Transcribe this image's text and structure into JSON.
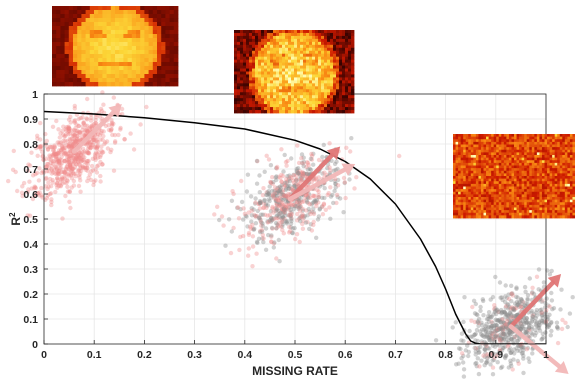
{
  "chart_data": {
    "type": "scatter",
    "title": "",
    "xlabel": "MISSING RATE",
    "ylabel": "R",
    "ylabel_superscript": "2",
    "xlim": [
      0,
      1
    ],
    "ylim": [
      0,
      1
    ],
    "x_ticks": [
      "0",
      "0.1",
      "0.2",
      "0.3",
      "0.4",
      "0.5",
      "0.6",
      "0.7",
      "0.8",
      "0.9",
      "1"
    ],
    "y_ticks": [
      "0",
      "0.1",
      "0.2",
      "0.3",
      "0.4",
      "0.5",
      "0.6",
      "0.7",
      "0.8",
      "0.9",
      "1"
    ],
    "grid": true,
    "curve": {
      "color": "#000000",
      "x": [
        0,
        0.1,
        0.2,
        0.3,
        0.4,
        0.5,
        0.55,
        0.6,
        0.65,
        0.7,
        0.75,
        0.78,
        0.8,
        0.82,
        0.84,
        0.85,
        0.86,
        0.87,
        0.9,
        1.0
      ],
      "y": [
        0.93,
        0.92,
        0.905,
        0.885,
        0.86,
        0.815,
        0.78,
        0.73,
        0.66,
        0.56,
        0.42,
        0.31,
        0.22,
        0.12,
        0.04,
        0.012,
        0.003,
        0.0,
        0.0,
        0.0
      ]
    },
    "clusters": [
      {
        "cx": 0.06,
        "cy": 0.77,
        "sx": 0.045,
        "sy": 0.085,
        "rho": 0.55,
        "n": 650,
        "pink_fraction": 1.0
      },
      {
        "cx": 0.49,
        "cy": 0.58,
        "sx": 0.05,
        "sy": 0.09,
        "rho": 0.55,
        "n": 700,
        "pink_fraction": 0.5
      },
      {
        "cx": 0.93,
        "cy": 0.07,
        "sx": 0.045,
        "sy": 0.075,
        "rho": 0.4,
        "n": 650,
        "pink_fraction": 0.12
      }
    ],
    "arrows": [
      {
        "x1": 0.06,
        "y1": 0.77,
        "x2": 0.155,
        "y2": 0.96,
        "color": "#f2b7b7"
      },
      {
        "x1": 0.49,
        "y1": 0.58,
        "x2": 0.59,
        "y2": 0.79,
        "color": "#e07676"
      },
      {
        "x1": 0.49,
        "y1": 0.58,
        "x2": 0.62,
        "y2": 0.72,
        "color": "#f2b7b7"
      },
      {
        "x1": 0.93,
        "y1": 0.07,
        "x2": 1.03,
        "y2": 0.28,
        "color": "#e07676"
      },
      {
        "x1": 0.93,
        "y1": 0.07,
        "x2": 1.045,
        "y2": -0.12,
        "color": "#f2b7b7"
      }
    ],
    "point_colors": {
      "pink": "#f08a8a",
      "gray": "#8c8c8c"
    },
    "insets": [
      {
        "kind": "face-clear",
        "seed": 11
      },
      {
        "kind": "face-noisy",
        "seed": 23
      },
      {
        "kind": "noise",
        "seed": 37
      }
    ]
  }
}
